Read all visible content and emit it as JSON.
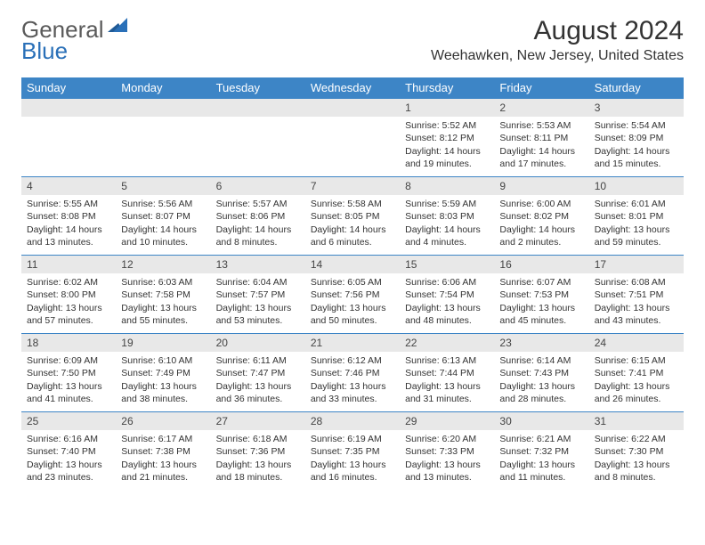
{
  "logo": {
    "part1": "General",
    "part2": "Blue"
  },
  "title": "August 2024",
  "location": "Weehawken, New Jersey, United States",
  "colors": {
    "header_bg": "#3d85c6",
    "header_text": "#ffffff",
    "daynum_bg": "#e8e8e8",
    "row_border": "#3d85c6",
    "logo_gray": "#5a5a5a",
    "logo_blue": "#2a70b8",
    "text": "#333333",
    "background": "#ffffff"
  },
  "typography": {
    "title_fontsize": 30,
    "location_fontsize": 16,
    "dayheader_fontsize": 13,
    "daynum_fontsize": 12,
    "body_fontsize": 10.5
  },
  "day_headers": [
    "Sunday",
    "Monday",
    "Tuesday",
    "Wednesday",
    "Thursday",
    "Friday",
    "Saturday"
  ],
  "weeks": [
    [
      {
        "n": "",
        "sunrise": "",
        "sunset": "",
        "daylight": ""
      },
      {
        "n": "",
        "sunrise": "",
        "sunset": "",
        "daylight": ""
      },
      {
        "n": "",
        "sunrise": "",
        "sunset": "",
        "daylight": ""
      },
      {
        "n": "",
        "sunrise": "",
        "sunset": "",
        "daylight": ""
      },
      {
        "n": "1",
        "sunrise": "Sunrise: 5:52 AM",
        "sunset": "Sunset: 8:12 PM",
        "daylight": "Daylight: 14 hours and 19 minutes."
      },
      {
        "n": "2",
        "sunrise": "Sunrise: 5:53 AM",
        "sunset": "Sunset: 8:11 PM",
        "daylight": "Daylight: 14 hours and 17 minutes."
      },
      {
        "n": "3",
        "sunrise": "Sunrise: 5:54 AM",
        "sunset": "Sunset: 8:09 PM",
        "daylight": "Daylight: 14 hours and 15 minutes."
      }
    ],
    [
      {
        "n": "4",
        "sunrise": "Sunrise: 5:55 AM",
        "sunset": "Sunset: 8:08 PM",
        "daylight": "Daylight: 14 hours and 13 minutes."
      },
      {
        "n": "5",
        "sunrise": "Sunrise: 5:56 AM",
        "sunset": "Sunset: 8:07 PM",
        "daylight": "Daylight: 14 hours and 10 minutes."
      },
      {
        "n": "6",
        "sunrise": "Sunrise: 5:57 AM",
        "sunset": "Sunset: 8:06 PM",
        "daylight": "Daylight: 14 hours and 8 minutes."
      },
      {
        "n": "7",
        "sunrise": "Sunrise: 5:58 AM",
        "sunset": "Sunset: 8:05 PM",
        "daylight": "Daylight: 14 hours and 6 minutes."
      },
      {
        "n": "8",
        "sunrise": "Sunrise: 5:59 AM",
        "sunset": "Sunset: 8:03 PM",
        "daylight": "Daylight: 14 hours and 4 minutes."
      },
      {
        "n": "9",
        "sunrise": "Sunrise: 6:00 AM",
        "sunset": "Sunset: 8:02 PM",
        "daylight": "Daylight: 14 hours and 2 minutes."
      },
      {
        "n": "10",
        "sunrise": "Sunrise: 6:01 AM",
        "sunset": "Sunset: 8:01 PM",
        "daylight": "Daylight: 13 hours and 59 minutes."
      }
    ],
    [
      {
        "n": "11",
        "sunrise": "Sunrise: 6:02 AM",
        "sunset": "Sunset: 8:00 PM",
        "daylight": "Daylight: 13 hours and 57 minutes."
      },
      {
        "n": "12",
        "sunrise": "Sunrise: 6:03 AM",
        "sunset": "Sunset: 7:58 PM",
        "daylight": "Daylight: 13 hours and 55 minutes."
      },
      {
        "n": "13",
        "sunrise": "Sunrise: 6:04 AM",
        "sunset": "Sunset: 7:57 PM",
        "daylight": "Daylight: 13 hours and 53 minutes."
      },
      {
        "n": "14",
        "sunrise": "Sunrise: 6:05 AM",
        "sunset": "Sunset: 7:56 PM",
        "daylight": "Daylight: 13 hours and 50 minutes."
      },
      {
        "n": "15",
        "sunrise": "Sunrise: 6:06 AM",
        "sunset": "Sunset: 7:54 PM",
        "daylight": "Daylight: 13 hours and 48 minutes."
      },
      {
        "n": "16",
        "sunrise": "Sunrise: 6:07 AM",
        "sunset": "Sunset: 7:53 PM",
        "daylight": "Daylight: 13 hours and 45 minutes."
      },
      {
        "n": "17",
        "sunrise": "Sunrise: 6:08 AM",
        "sunset": "Sunset: 7:51 PM",
        "daylight": "Daylight: 13 hours and 43 minutes."
      }
    ],
    [
      {
        "n": "18",
        "sunrise": "Sunrise: 6:09 AM",
        "sunset": "Sunset: 7:50 PM",
        "daylight": "Daylight: 13 hours and 41 minutes."
      },
      {
        "n": "19",
        "sunrise": "Sunrise: 6:10 AM",
        "sunset": "Sunset: 7:49 PM",
        "daylight": "Daylight: 13 hours and 38 minutes."
      },
      {
        "n": "20",
        "sunrise": "Sunrise: 6:11 AM",
        "sunset": "Sunset: 7:47 PM",
        "daylight": "Daylight: 13 hours and 36 minutes."
      },
      {
        "n": "21",
        "sunrise": "Sunrise: 6:12 AM",
        "sunset": "Sunset: 7:46 PM",
        "daylight": "Daylight: 13 hours and 33 minutes."
      },
      {
        "n": "22",
        "sunrise": "Sunrise: 6:13 AM",
        "sunset": "Sunset: 7:44 PM",
        "daylight": "Daylight: 13 hours and 31 minutes."
      },
      {
        "n": "23",
        "sunrise": "Sunrise: 6:14 AM",
        "sunset": "Sunset: 7:43 PM",
        "daylight": "Daylight: 13 hours and 28 minutes."
      },
      {
        "n": "24",
        "sunrise": "Sunrise: 6:15 AM",
        "sunset": "Sunset: 7:41 PM",
        "daylight": "Daylight: 13 hours and 26 minutes."
      }
    ],
    [
      {
        "n": "25",
        "sunrise": "Sunrise: 6:16 AM",
        "sunset": "Sunset: 7:40 PM",
        "daylight": "Daylight: 13 hours and 23 minutes."
      },
      {
        "n": "26",
        "sunrise": "Sunrise: 6:17 AM",
        "sunset": "Sunset: 7:38 PM",
        "daylight": "Daylight: 13 hours and 21 minutes."
      },
      {
        "n": "27",
        "sunrise": "Sunrise: 6:18 AM",
        "sunset": "Sunset: 7:36 PM",
        "daylight": "Daylight: 13 hours and 18 minutes."
      },
      {
        "n": "28",
        "sunrise": "Sunrise: 6:19 AM",
        "sunset": "Sunset: 7:35 PM",
        "daylight": "Daylight: 13 hours and 16 minutes."
      },
      {
        "n": "29",
        "sunrise": "Sunrise: 6:20 AM",
        "sunset": "Sunset: 7:33 PM",
        "daylight": "Daylight: 13 hours and 13 minutes."
      },
      {
        "n": "30",
        "sunrise": "Sunrise: 6:21 AM",
        "sunset": "Sunset: 7:32 PM",
        "daylight": "Daylight: 13 hours and 11 minutes."
      },
      {
        "n": "31",
        "sunrise": "Sunrise: 6:22 AM",
        "sunset": "Sunset: 7:30 PM",
        "daylight": "Daylight: 13 hours and 8 minutes."
      }
    ]
  ]
}
